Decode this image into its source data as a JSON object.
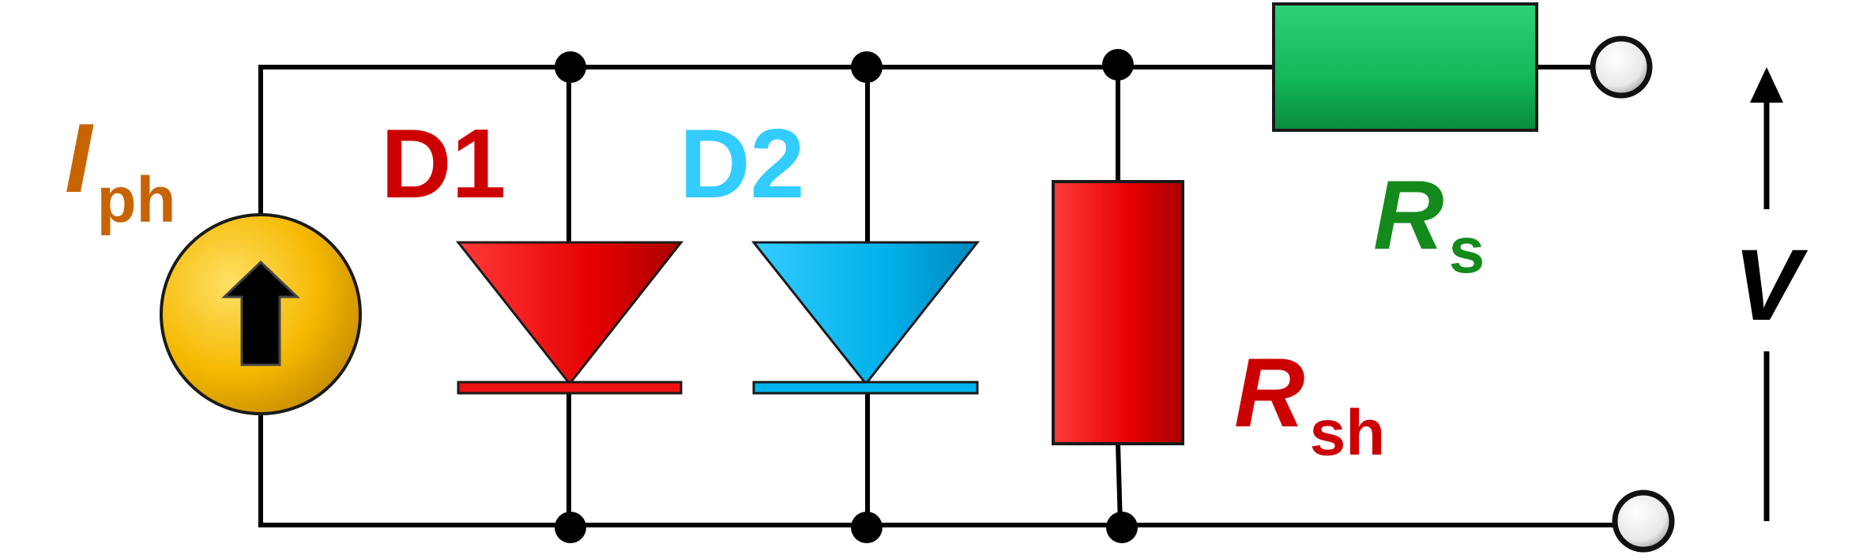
{
  "colors": {
    "wire": "#000000",
    "source_fill": "#f5b800",
    "d1": "#ee1111",
    "d1_label": "#cc0000",
    "d2": "#00b4ee",
    "d2_label": "#33ccff",
    "rs": "#12b856",
    "rs_label": "#138a1b",
    "rsh": "#ee1111",
    "rsh_label": "#cc0000",
    "iph_label": "#c86400",
    "v_label": "#000000"
  },
  "labels": {
    "iph_main": "I",
    "iph_sub": "ph",
    "d1": "D1",
    "d2": "D2",
    "rs_main": "R",
    "rs_sub": "s",
    "rsh_main": "R",
    "rsh_sub": "sh",
    "v": "V"
  },
  "icons": {
    "source_arrow": "up-arrow-icon",
    "voltage_arrow": "up-arrow-icon"
  }
}
